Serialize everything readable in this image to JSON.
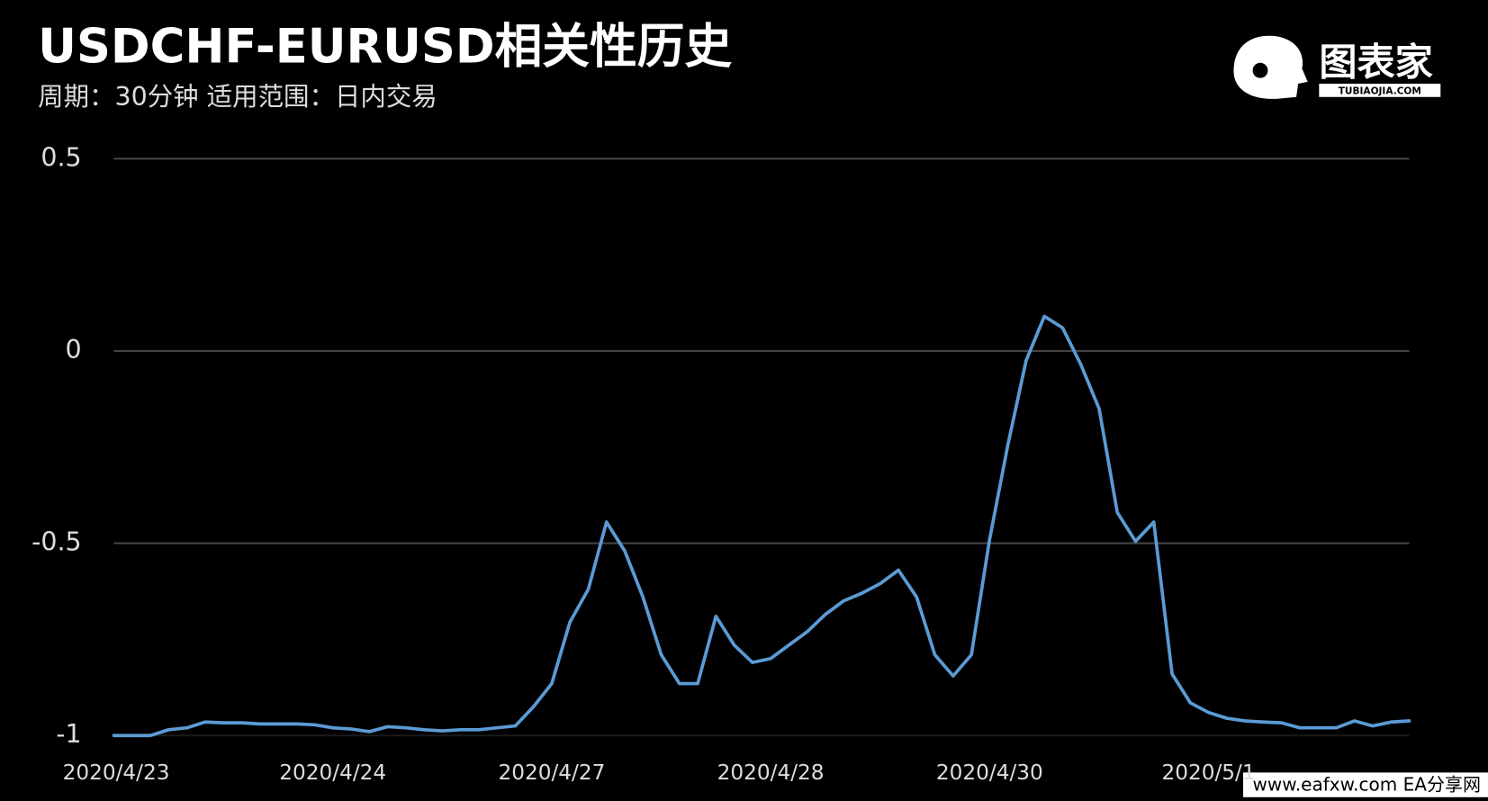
{
  "chart_data": {
    "type": "line",
    "title": "USDCHF-EURUSD相关性历史",
    "subtitle": "周期：30分钟  适用范围：日内交易",
    "categories": [
      "2020/4/23",
      null,
      null,
      null,
      null,
      null,
      null,
      null,
      null,
      null,
      null,
      null,
      "2020/4/24",
      null,
      null,
      null,
      null,
      null,
      null,
      null,
      null,
      null,
      null,
      null,
      "2020/4/27",
      null,
      null,
      null,
      null,
      null,
      null,
      null,
      null,
      null,
      null,
      null,
      "2020/4/28",
      null,
      null,
      null,
      null,
      null,
      null,
      null,
      null,
      null,
      null,
      null,
      "2020/4/30",
      null,
      null,
      null,
      null,
      null,
      null,
      null,
      null,
      null,
      null,
      null,
      "2020/5/1",
      null,
      null,
      null,
      null,
      null,
      null,
      null,
      null,
      null,
      null,
      null
    ],
    "series": [
      {
        "name": "USDCHF-EURUSD",
        "color": "#5b9bd5",
        "values": [
          -1.0,
          -1.0,
          -1.0,
          -0.985,
          -0.98,
          -0.965,
          -0.967,
          -0.967,
          -0.97,
          -0.97,
          -0.97,
          -0.972,
          -0.98,
          -0.983,
          -0.99,
          -0.977,
          -0.98,
          -0.985,
          -0.988,
          -0.985,
          -0.985,
          -0.98,
          -0.975,
          -0.925,
          -0.865,
          -0.705,
          -0.62,
          -0.445,
          -0.52,
          -0.64,
          -0.79,
          -0.865,
          -0.865,
          -0.69,
          -0.765,
          -0.81,
          -0.8,
          -0.765,
          -0.73,
          -0.685,
          -0.65,
          -0.63,
          -0.605,
          -0.57,
          -0.64,
          -0.79,
          -0.845,
          -0.79,
          -0.49,
          -0.245,
          -0.025,
          0.09,
          0.06,
          -0.035,
          -0.15,
          -0.42,
          -0.495,
          -0.445,
          -0.84,
          -0.915,
          -0.94,
          -0.955,
          -0.962,
          -0.965,
          -0.967,
          -0.98,
          -0.98,
          -0.98,
          -0.962,
          -0.975,
          -0.965,
          -0.962
        ]
      }
    ],
    "ylim": [
      -1,
      0.5
    ],
    "yticks": [
      0.5,
      0,
      -0.5,
      -1
    ],
    "grid": true
  },
  "logo": {
    "text": "图表家",
    "subtext": "TUBIAOJIA.COM"
  },
  "watermark": "www.eafxw.com   EA分享网"
}
